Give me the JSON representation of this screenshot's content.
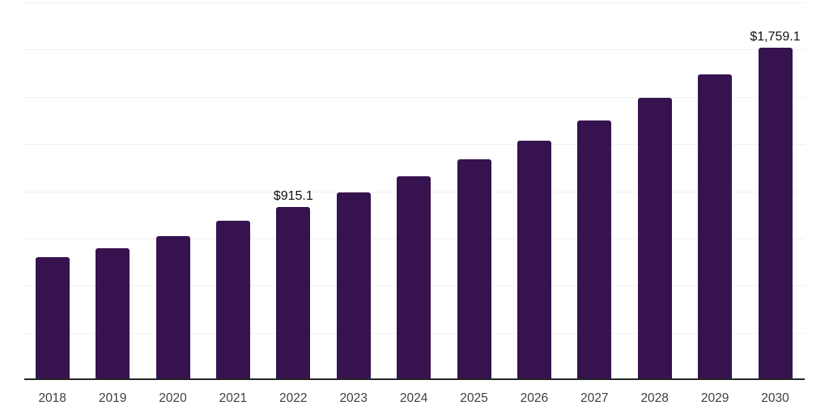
{
  "chart_data": {
    "type": "bar",
    "title": "",
    "xlabel": "",
    "ylabel": "",
    "categories": [
      "2018",
      "2019",
      "2020",
      "2021",
      "2022",
      "2023",
      "2024",
      "2025",
      "2026",
      "2027",
      "2028",
      "2029",
      "2030"
    ],
    "values": [
      652.1,
      696.3,
      763.4,
      845.2,
      915.1,
      993.0,
      1077.5,
      1169.2,
      1268.7,
      1376.7,
      1493.8,
      1620.9,
      1759.1
    ],
    "ylim": [
      0,
      2000
    ],
    "grid_step": 250,
    "grid": true,
    "legend": false,
    "annotations": [
      {
        "category": "2022",
        "text": "$915.1"
      },
      {
        "category": "2030",
        "text": "$1,759.1"
      }
    ]
  },
  "colors": {
    "bar": "#36134F",
    "gridline": "#f1f1f1",
    "axis_line": "#262626",
    "tick_label": "#3F3F3F",
    "data_label": "#111111",
    "background": "#ffffff"
  }
}
